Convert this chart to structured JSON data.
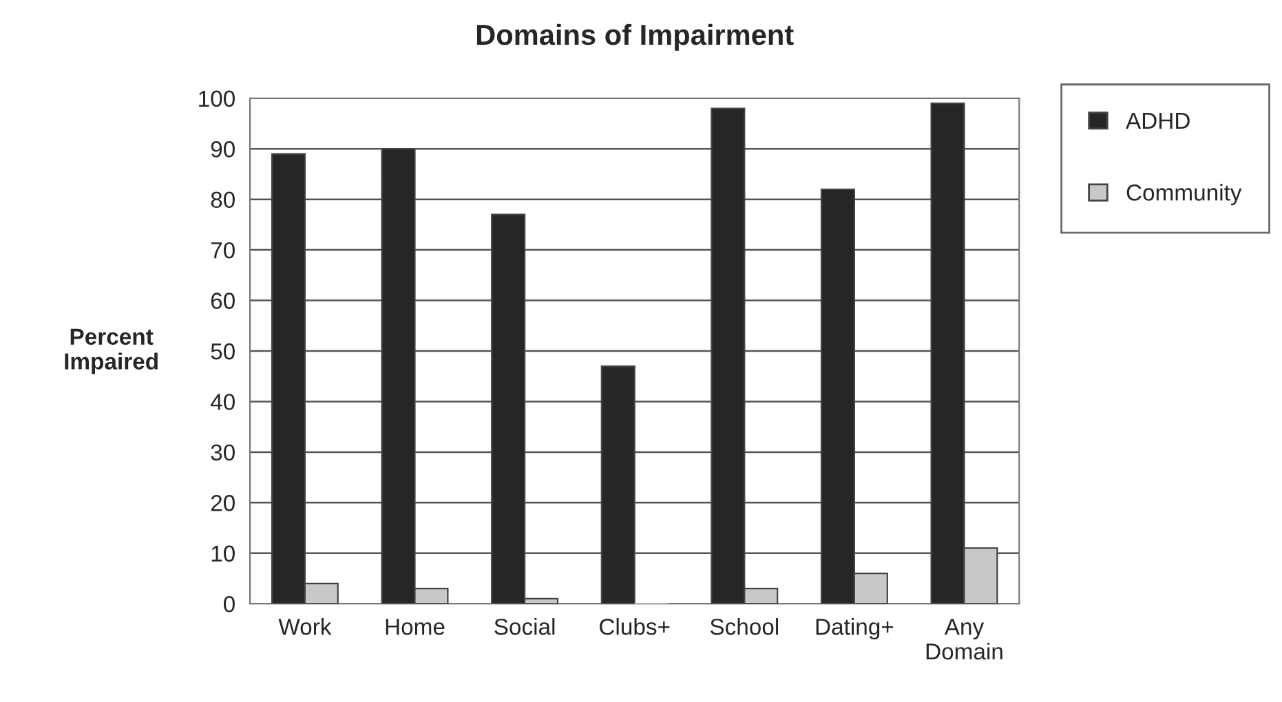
{
  "chart_data": {
    "type": "bar",
    "title": "Domains of Impairment",
    "ylabel": "Percent\nImpaired",
    "categories": [
      "Work",
      "Home",
      "Social",
      "Clubs+",
      "School",
      "Dating+",
      "Any\nDomain"
    ],
    "series": [
      {
        "name": "ADHD",
        "color": "#262626",
        "values": [
          89,
          90,
          77,
          47,
          98,
          82,
          99
        ]
      },
      {
        "name": "Community",
        "color": "#c8c8c8",
        "values": [
          4,
          3,
          1,
          0,
          3,
          6,
          11
        ]
      }
    ],
    "ylim": [
      0,
      100
    ],
    "yticks": [
      0,
      10,
      20,
      30,
      40,
      50,
      60,
      70,
      80,
      90,
      100
    ],
    "grid": "y",
    "legend": "right"
  }
}
